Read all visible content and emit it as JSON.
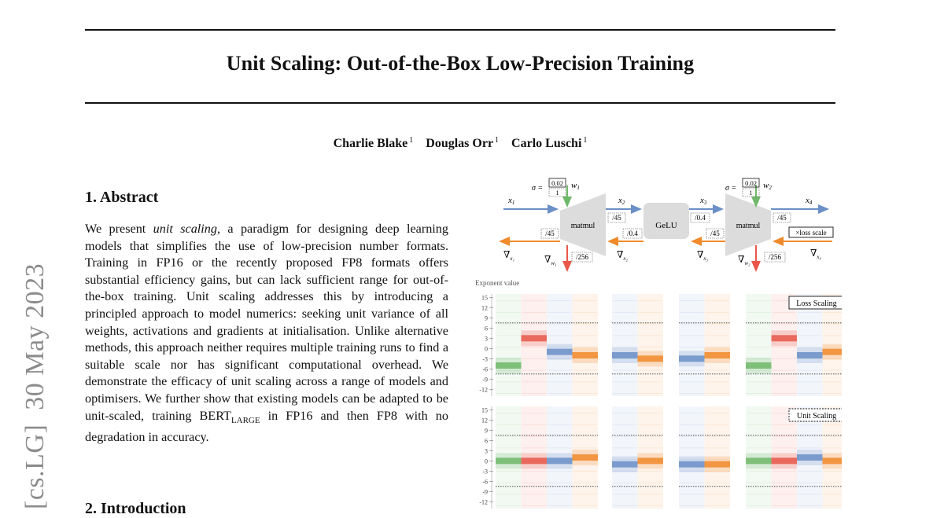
{
  "paper": {
    "title": "Unit Scaling: Out-of-the-Box Low-Precision Training",
    "authors": [
      {
        "name": "Charlie Blake",
        "affiliation": "1"
      },
      {
        "name": "Douglas Orr",
        "affiliation": "1"
      },
      {
        "name": "Carlo Luschi",
        "affiliation": "1"
      }
    ],
    "arxiv_stamp": "[cs.LG]  30 May 2023",
    "abstract": {
      "heading": "1. Abstract",
      "parts": {
        "p1": "We present ",
        "p2": "unit scaling",
        "p3": ", a paradigm for designing deep learning models that simplifies the use of low-precision number formats. Training in FP16 or the recently proposed FP8 formats offers substantial efficiency gains, but can lack sufficient range for out-of-the-box training. Unit scaling addresses this by introducing a principled approach to model numerics: seeking unit variance of all weights, activations and gradients at initialisation. Unlike alternative methods, this approach neither requires multiple training runs to find a suitable scale nor has significant computational overhead. We demonstrate the efficacy of unit scaling across a range of models and optimisers. We further show that existing models can be adapted to be unit-scaled, training BERT",
        "p4": "LARGE",
        "p5": " in FP16 and then FP8 with no degradation in accuracy."
      }
    },
    "next_heading": "2. Introduction"
  },
  "figure": {
    "diagram": {
      "nodes": {
        "matmul_1": "matmul",
        "gelu": "GeLU",
        "matmul_2": "matmul"
      },
      "forward_labels": {
        "x1": "x",
        "x1_sub": "1",
        "x2": "x",
        "x2_sub": "2",
        "x3": "x",
        "x3_sub": "3",
        "x4": "x",
        "x4_sub": "4"
      },
      "backward_labels": {
        "g1": "∇",
        "g1_sub": "x₁",
        "g2": "∇",
        "g2_sub": "x₂",
        "g3": "∇",
        "g3_sub": "x₃",
        "g4": "∇",
        "g4_sub": "x₄",
        "gw1": "∇",
        "gw1_sub": "w₁",
        "gw2": "∇",
        "gw2_sub": "w₂"
      },
      "weights": {
        "sigma_prefix": "σ =",
        "init_value": "0.02",
        "init_scale": "1",
        "w1": "w",
        "w1_sub": "1",
        "w2": "w",
        "w2_sub": "2"
      },
      "scale_labels": {
        "fwd_mm1": "/45",
        "fwd_gelu": "/0.4",
        "fwd_mm2": "/45",
        "bwd_x1": "/45",
        "bwd_gelu": "/0.4",
        "bwd_x3": "/45",
        "bwd_w1": "/256",
        "bwd_w2": "/256"
      },
      "loss_scale_label": "×loss scale",
      "colors": {
        "forward": "#6b8fc7",
        "backward": "#f08a2b",
        "weight": "#6fb86a",
        "weight_grad": "#e8574a"
      }
    },
    "histograms": {
      "y_axis_label": "Exponent value",
      "y_ticks": [
        "15",
        "12",
        "9",
        "6",
        "3",
        "0",
        "-3",
        "-6",
        "-9",
        "-12"
      ],
      "panel_labels": [
        "Loss Scaling",
        "Unit Scaling"
      ],
      "rows": [
        {
          "label": "Loss Scaling",
          "groups": [
            {
              "columns": [
                {
                  "color": "#6fb86a",
                  "center": -5
                },
                {
                  "color": "#e8574a",
                  "center": 3
                },
                {
                  "color": "#6b8fc7",
                  "center": -1
                },
                {
                  "color": "#f08a2b",
                  "center": -2
                }
              ]
            },
            {
              "columns": [
                {
                  "color": "#6b8fc7",
                  "center": -2
                },
                {
                  "color": "#f08a2b",
                  "center": -3
                }
              ]
            },
            {
              "columns": [
                {
                  "color": "#6b8fc7",
                  "center": -3
                },
                {
                  "color": "#f08a2b",
                  "center": -2
                }
              ]
            },
            {
              "columns": [
                {
                  "color": "#6fb86a",
                  "center": -5
                },
                {
                  "color": "#e8574a",
                  "center": 3
                },
                {
                  "color": "#6b8fc7",
                  "center": -2
                },
                {
                  "color": "#f08a2b",
                  "center": -1
                }
              ]
            }
          ]
        },
        {
          "label": "Unit Scaling",
          "groups": [
            {
              "columns": [
                {
                  "color": "#6fb86a",
                  "center": 0
                },
                {
                  "color": "#e8574a",
                  "center": 0
                },
                {
                  "color": "#6b8fc7",
                  "center": 0
                },
                {
                  "color": "#f08a2b",
                  "center": 1
                }
              ]
            },
            {
              "columns": [
                {
                  "color": "#6b8fc7",
                  "center": -1
                },
                {
                  "color": "#f08a2b",
                  "center": 0
                }
              ]
            },
            {
              "columns": [
                {
                  "color": "#6b8fc7",
                  "center": -1
                },
                {
                  "color": "#f08a2b",
                  "center": -1
                }
              ]
            },
            {
              "columns": [
                {
                  "color": "#6fb86a",
                  "center": 0
                },
                {
                  "color": "#e8574a",
                  "center": 0
                },
                {
                  "color": "#6b8fc7",
                  "center": 1
                },
                {
                  "color": "#f08a2b",
                  "center": 0
                }
              ]
            }
          ]
        }
      ]
    }
  }
}
